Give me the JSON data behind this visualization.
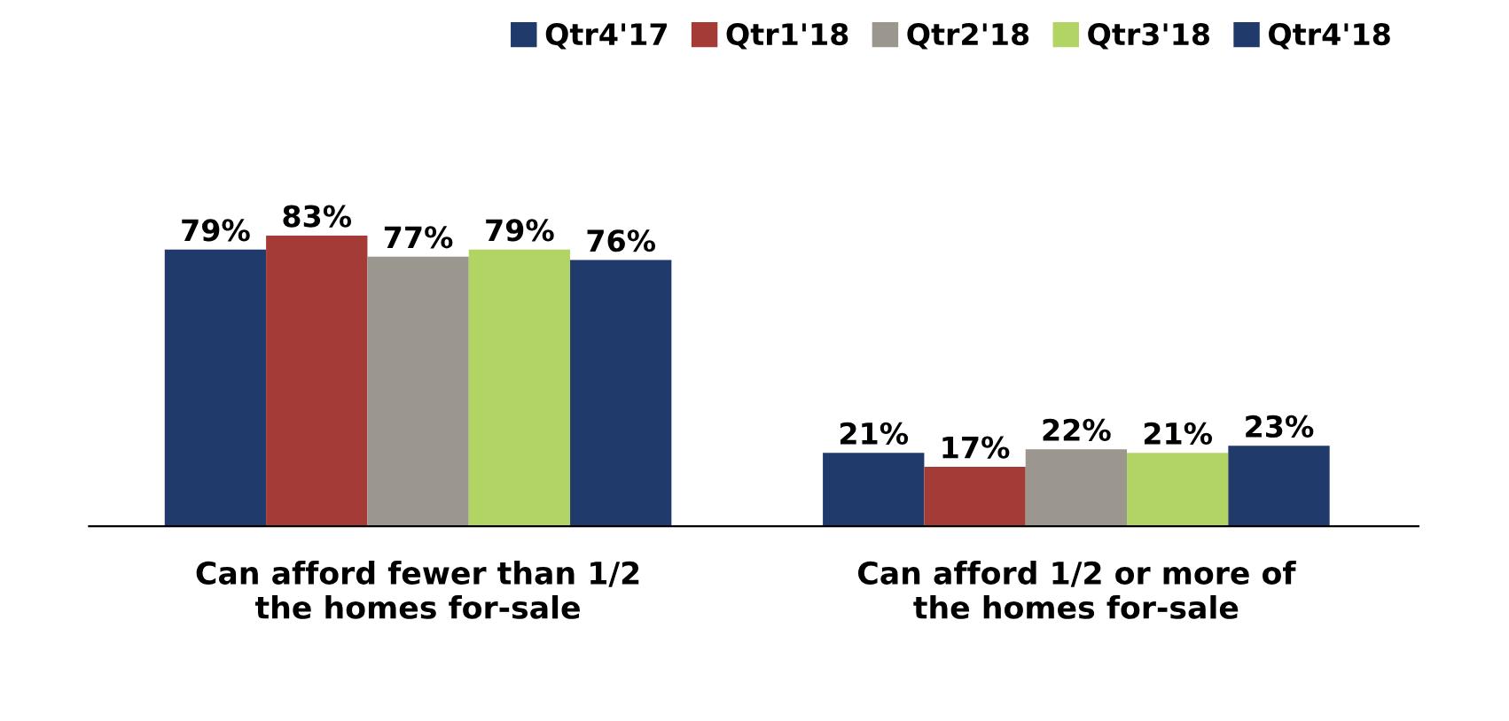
{
  "chart_data": {
    "type": "bar",
    "categories": [
      "Can afford fewer than 1/2\nthe homes for-sale",
      "Can afford 1/2 or more of\nthe homes for-sale"
    ],
    "series": [
      {
        "name": "Qtr4'17",
        "color": "#203a6c",
        "values": [
          79,
          21
        ],
        "value_labels": [
          "79%",
          "21%"
        ]
      },
      {
        "name": "Qtr1'18",
        "color": "#a53b37",
        "values": [
          83,
          17
        ],
        "value_labels": [
          "83%",
          "17%"
        ]
      },
      {
        "name": "Qtr2'18",
        "color": "#9b968e",
        "values": [
          77,
          22
        ],
        "value_labels": [
          "77%",
          "22%"
        ]
      },
      {
        "name": "Qtr3'18",
        "color": "#b2d465",
        "values": [
          79,
          21
        ],
        "value_labels": [
          "79%",
          "21%"
        ]
      },
      {
        "name": "Qtr4'18",
        "color": "#203a6c",
        "values": [
          76,
          23
        ],
        "value_labels": [
          "76%",
          "23%"
        ]
      }
    ],
    "legend": "top",
    "grid": false
  }
}
